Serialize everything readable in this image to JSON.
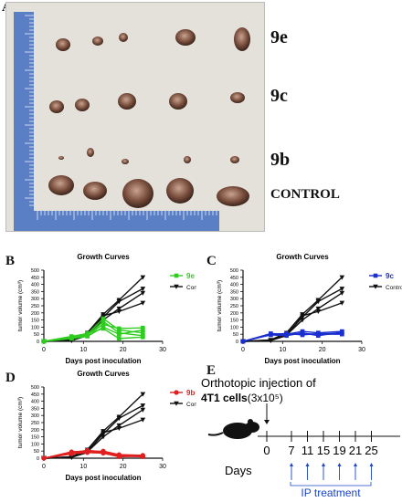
{
  "panel_letters": {
    "a": "A",
    "b": "B",
    "c": "C",
    "d": "D",
    "e": "E"
  },
  "photo": {
    "row_labels": [
      "9e",
      "9c",
      "9b",
      "CONTROL"
    ]
  },
  "colors": {
    "treated_9e": "#2ecc1f",
    "treated_9c": "#1a2fd0",
    "treated_9b": "#e02020",
    "control": "#111111",
    "ip": "#1a45c8",
    "ruler": "#5a7fc4"
  },
  "chart_data": [
    {
      "type": "line",
      "panel": "B",
      "title": "Growth Curves",
      "xlabel": "Days post inoculation",
      "ylabel": "tumor volume (cm³)",
      "xlim": [
        0,
        30
      ],
      "ylim": [
        0,
        500
      ],
      "xticks": [
        "0",
        "10",
        "20",
        "30"
      ],
      "yticks": [
        "0",
        "50",
        "100",
        "150",
        "200",
        "250",
        "300",
        "350",
        "400",
        "450",
        "500"
      ],
      "x": [
        0,
        7,
        11,
        15,
        19,
        25
      ],
      "series": [
        {
          "name": "9e",
          "color": "#2ecc1f",
          "marker": "square",
          "group": "9e",
          "lines": [
            [
              0,
              30,
              45,
              120,
              90,
              95
            ],
            [
              0,
              25,
              40,
              140,
              60,
              40
            ],
            [
              0,
              20,
              35,
              100,
              50,
              80
            ],
            [
              0,
              28,
              50,
              160,
              80,
              60
            ],
            [
              0,
              35,
              55,
              90,
              20,
              30
            ]
          ]
        },
        {
          "name": "Control",
          "color": "#111111",
          "marker": "triangle-down",
          "group": "Control",
          "lines": [
            [
              0,
              10,
              60,
              190,
              290,
              450
            ],
            [
              0,
              5,
              50,
              170,
              280,
              370
            ],
            [
              0,
              8,
              45,
              150,
              230,
              340
            ],
            [
              0,
              6,
              40,
              180,
              210,
              270
            ]
          ]
        }
      ]
    },
    {
      "type": "line",
      "panel": "C",
      "title": "Growth Curves",
      "xlabel": "Days post inoculation",
      "ylabel": "tumor volume (cm³)",
      "xlim": [
        0,
        30
      ],
      "ylim": [
        0,
        500
      ],
      "xticks": [
        "0",
        "10",
        "20",
        "30"
      ],
      "yticks": [
        "0",
        "50",
        "100",
        "150",
        "200",
        "250",
        "300",
        "350",
        "400",
        "450",
        "500"
      ],
      "x": [
        0,
        7,
        11,
        15,
        19,
        25
      ],
      "series": [
        {
          "name": "9c",
          "color": "#1a2fd0",
          "marker": "square",
          "group": "9c",
          "lines": [
            [
              0,
              55,
              50,
              70,
              60,
              70
            ],
            [
              0,
              50,
              55,
              45,
              55,
              55
            ],
            [
              0,
              45,
              40,
              60,
              40,
              65
            ],
            [
              0,
              48,
              52,
              55,
              50,
              50
            ]
          ]
        },
        {
          "name": "Control",
          "color": "#111111",
          "marker": "triangle-down",
          "group": "Control",
          "lines": [
            [
              0,
              10,
              60,
              190,
              290,
              450
            ],
            [
              0,
              5,
              50,
              170,
              280,
              370
            ],
            [
              0,
              8,
              45,
              150,
              230,
              340
            ],
            [
              0,
              6,
              40,
              180,
              210,
              270
            ]
          ]
        }
      ]
    },
    {
      "type": "line",
      "panel": "D",
      "title": "Growth Curves",
      "xlabel": "Days post inoculation",
      "ylabel": "tumor volume (cm³)",
      "xlim": [
        0,
        30
      ],
      "ylim": [
        0,
        500
      ],
      "xticks": [
        "0",
        "10",
        "20",
        "30"
      ],
      "yticks": [
        "0",
        "50",
        "100",
        "150",
        "200",
        "250",
        "300",
        "350",
        "400",
        "450",
        "500"
      ],
      "x": [
        0,
        7,
        11,
        15,
        19,
        25
      ],
      "series": [
        {
          "name": "9b",
          "color": "#e02020",
          "marker": "circle",
          "group": "9b",
          "lines": [
            [
              0,
              45,
              50,
              40,
              20,
              15
            ],
            [
              0,
              40,
              55,
              45,
              15,
              10
            ],
            [
              0,
              35,
              45,
              50,
              25,
              20
            ],
            [
              0,
              30,
              40,
              35,
              10,
              15
            ]
          ]
        },
        {
          "name": "Control",
          "color": "#111111",
          "marker": "triangle-down",
          "group": "Control",
          "lines": [
            [
              0,
              10,
              60,
              190,
              290,
              450
            ],
            [
              0,
              5,
              50,
              170,
              280,
              370
            ],
            [
              0,
              8,
              45,
              150,
              230,
              340
            ],
            [
              0,
              6,
              40,
              180,
              210,
              270
            ]
          ]
        }
      ]
    }
  ],
  "schedule": {
    "title_line1": "Orthotopic injection of",
    "title_line2_bold": "4T1 cells",
    "title_line2_rest": "(3x10⁵)",
    "day0": "0",
    "days": [
      "7",
      "11",
      "15",
      "19",
      "21",
      "25"
    ],
    "axis_label": "Days",
    "treatment_label": "IP treatment"
  }
}
